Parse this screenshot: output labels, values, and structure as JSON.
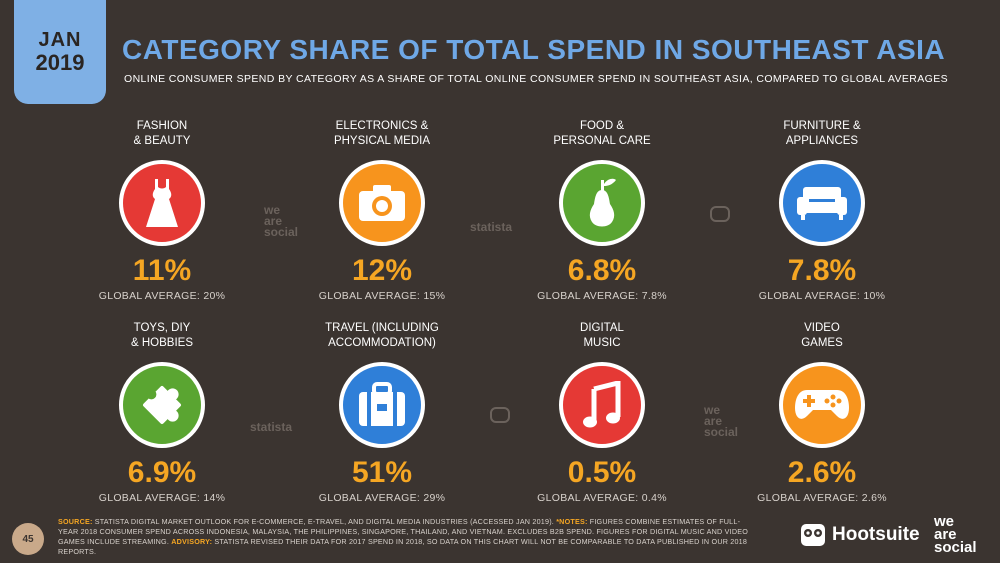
{
  "header": {
    "month": "JAN",
    "year": "2019",
    "title": "CATEGORY SHARE OF TOTAL SPEND IN SOUTHEAST ASIA",
    "subtitle": "ONLINE CONSUMER SPEND BY CATEGORY AS A SHARE OF TOTAL ONLINE CONSUMER SPEND IN SOUTHEAST ASIA, COMPARED TO GLOBAL AVERAGES"
  },
  "colors": {
    "accent_blue": "#6fa8e6",
    "value_orange": "#f5a623",
    "background": "#3b3430"
  },
  "categories": [
    {
      "label": "FASHION\n& BEAUTY",
      "value": "11%",
      "global": "GLOBAL AVERAGE: 20%",
      "icon": "dress-icon",
      "color": "#e53935"
    },
    {
      "label": "ELECTRONICS &\nPHYSICAL MEDIA",
      "value": "12%",
      "global": "GLOBAL AVERAGE: 15%",
      "icon": "camera-icon",
      "color": "#f7941d"
    },
    {
      "label": "FOOD &\nPERSONAL CARE",
      "value": "6.8%",
      "global": "GLOBAL AVERAGE: 7.8%",
      "icon": "pear-icon",
      "color": "#5aa531"
    },
    {
      "label": "FURNITURE &\nAPPLIANCES",
      "value": "7.8%",
      "global": "GLOBAL AVERAGE: 10%",
      "icon": "sofa-icon",
      "color": "#2f7fd8"
    },
    {
      "label": "TOYS, DIY\n& HOBBIES",
      "value": "6.9%",
      "global": "GLOBAL AVERAGE: 14%",
      "icon": "puzzle-icon",
      "color": "#5aa531"
    },
    {
      "label": "TRAVEL (INCLUDING\nACCOMMODATION)",
      "value": "51%",
      "global": "GLOBAL AVERAGE: 29%",
      "icon": "suitcase-icon",
      "color": "#2f7fd8"
    },
    {
      "label": "DIGITAL\nMUSIC",
      "value": "0.5%",
      "global": "GLOBAL AVERAGE: 0.4%",
      "icon": "music-note-icon",
      "color": "#e53935"
    },
    {
      "label": "VIDEO\nGAMES",
      "value": "2.6%",
      "global": "GLOBAL AVERAGE: 2.6%",
      "icon": "gamepad-icon",
      "color": "#f7941d"
    }
  ],
  "watermarks": {
    "we": "we",
    "are": "are",
    "social": "social",
    "statista": "statista"
  },
  "footer": {
    "page_number": "45",
    "source_label": "SOURCE:",
    "source_text": " STATISTA DIGITAL MARKET OUTLOOK FOR E-COMMERCE, E-TRAVEL, AND DIGITAL MEDIA INDUSTRIES (ACCESSED JAN 2019). ",
    "notes_label": "*NOTES:",
    "notes_text": " FIGURES COMBINE ESTIMATES OF FULL-YEAR 2018 CONSUMER SPEND ACROSS INDONESIA, MALAYSIA, THE PHILIPPINES, SINGAPORE, THAILAND, AND VIETNAM. EXCLUDES B2B SPEND. FIGURES FOR DIGITAL MUSIC AND VIDEO GAMES INCLUDE STREAMING. ",
    "advisory_label": "ADVISORY:",
    "advisory_text": " STATISTA REVISED THEIR DATA FOR 2017 SPEND IN 2018, SO DATA ON THIS CHART WILL NOT BE COMPARABLE TO DATA PUBLISHED IN OUR 2018 REPORTS.",
    "hootsuite": "Hootsuite",
    "we_are_social": [
      "we",
      "are",
      "social"
    ]
  }
}
